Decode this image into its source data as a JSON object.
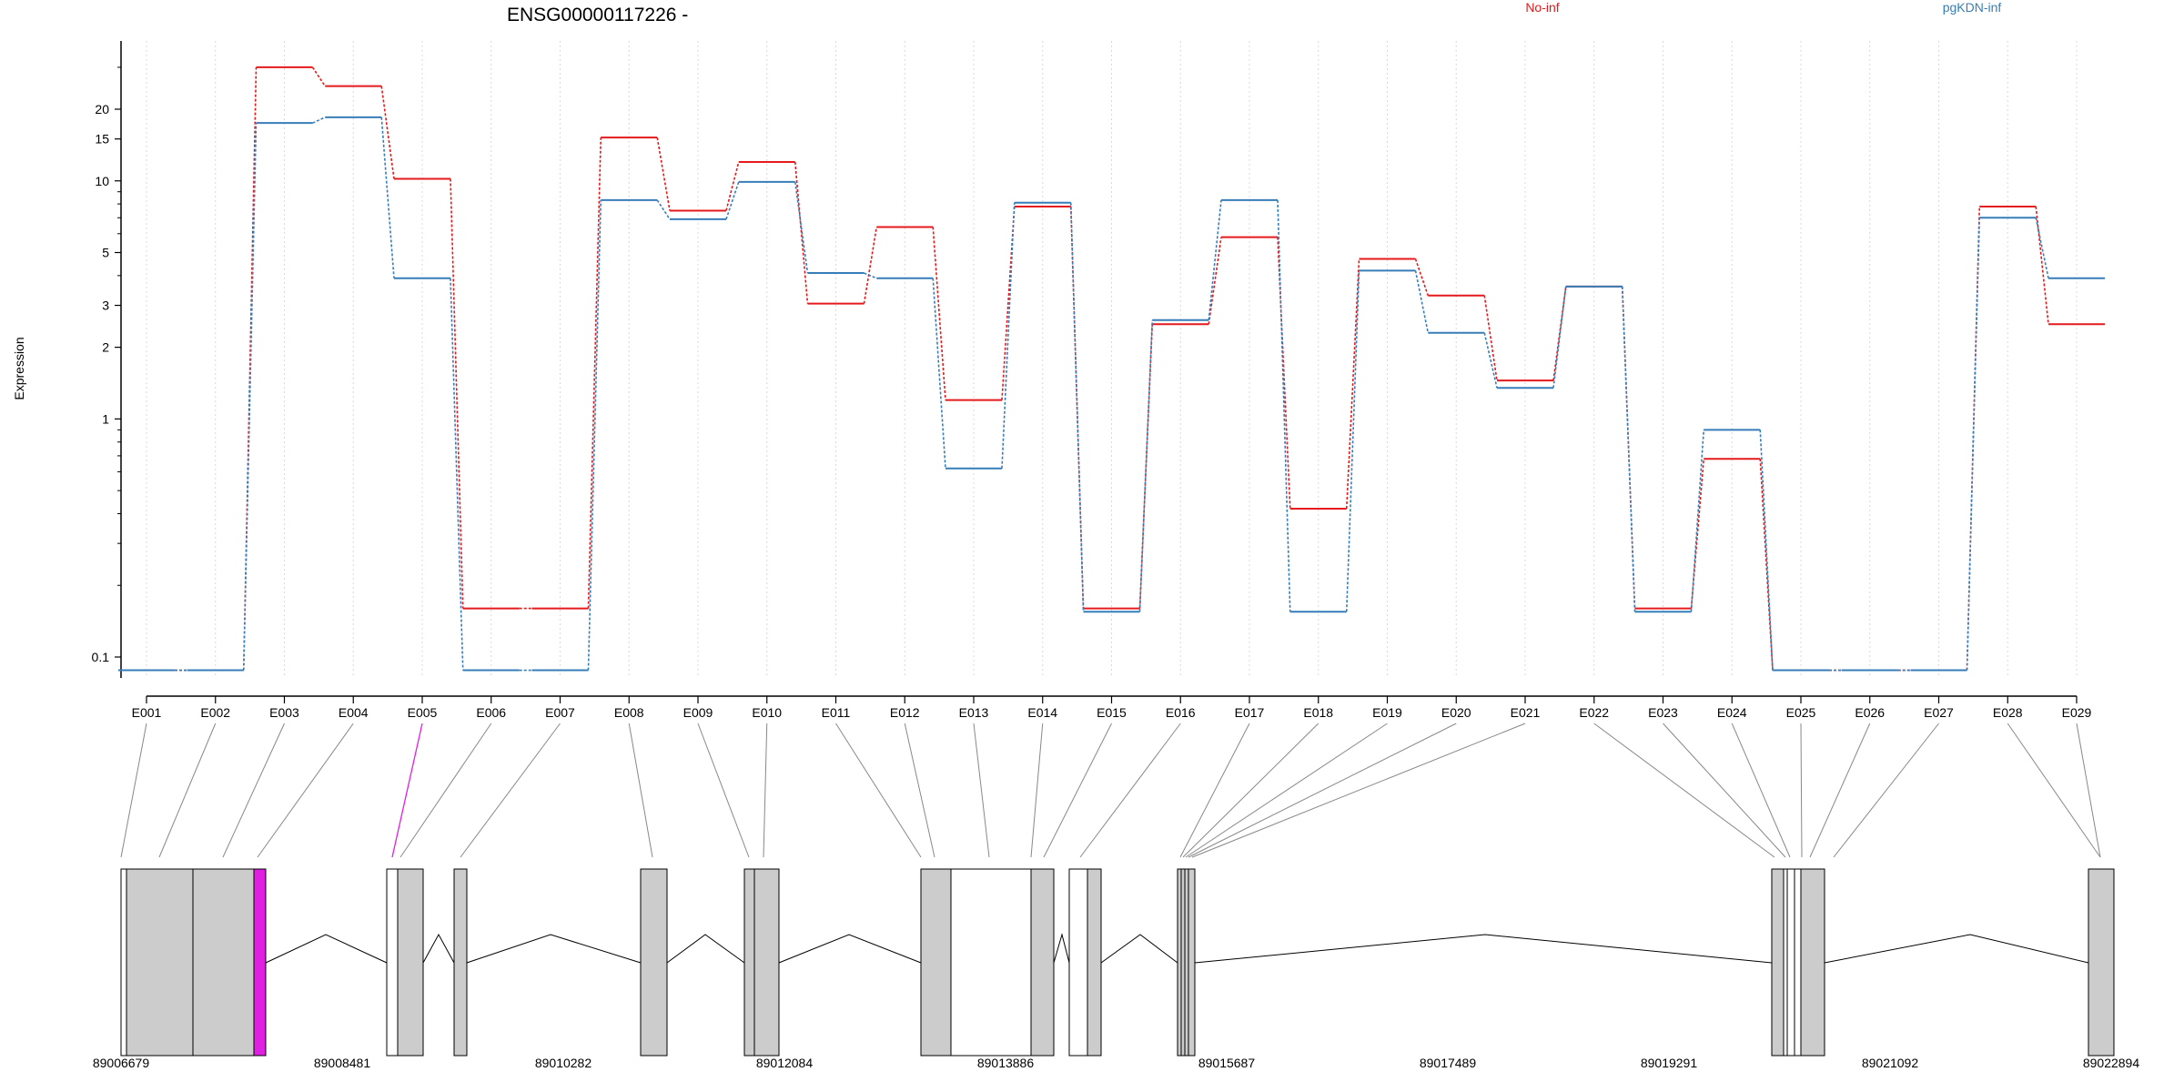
{
  "chart_data": {
    "type": "line",
    "title": "ENSG00000117226 -",
    "xlabel": "",
    "ylabel": "Expression",
    "y_scale": "log",
    "ylim": [
      0.07,
      40
    ],
    "y_ticks": [
      {
        "value": 0.1,
        "label": "0.1"
      },
      {
        "value": 1,
        "label": "1"
      },
      {
        "value": 2,
        "label": "2"
      },
      {
        "value": 3,
        "label": "3"
      },
      {
        "value": 5,
        "label": "5"
      },
      {
        "value": 10,
        "label": "10"
      },
      {
        "value": 15,
        "label": "15"
      },
      {
        "value": 20,
        "label": "20"
      }
    ],
    "categories": [
      "E001",
      "E002",
      "E003",
      "E004",
      "E005",
      "E006",
      "E007",
      "E008",
      "E009",
      "E010",
      "E011",
      "E012",
      "E013",
      "E014",
      "E015",
      "E016",
      "E017",
      "E018",
      "E019",
      "E020",
      "E021",
      "E022",
      "E023",
      "E024",
      "E025",
      "E026",
      "E027",
      "E028",
      "E029"
    ],
    "series": [
      {
        "name": "No-inf",
        "color": "#e41a1c",
        "values": [
          0.088,
          0.088,
          30,
          25,
          10.2,
          0.16,
          0.16,
          15.2,
          7.5,
          12,
          3.05,
          6.4,
          1.2,
          7.8,
          0.16,
          2.5,
          5.8,
          0.42,
          4.7,
          3.3,
          1.45,
          3.6,
          0.16,
          0.68,
          0.088,
          0.088,
          0.088,
          7.8,
          2.5
        ]
      },
      {
        "name": "pgKDN-inf",
        "color": "#377eb8",
        "values": [
          0.088,
          0.088,
          17.5,
          18.5,
          3.9,
          0.088,
          0.088,
          8.3,
          6.9,
          9.9,
          4.1,
          3.9,
          0.62,
          8.1,
          0.155,
          2.6,
          8.3,
          0.155,
          4.2,
          2.3,
          1.35,
          3.6,
          0.155,
          0.9,
          0.088,
          0.088,
          0.088,
          7.0,
          3.9
        ]
      }
    ],
    "legend_position": "top",
    "grid": "vertical-dotted",
    "gene_model": {
      "genomic_ticks": [
        "89006679",
        "89008481",
        "89010282",
        "89012084",
        "89013886",
        "89015687",
        "89017489",
        "89019291",
        "89021092",
        "89022894"
      ],
      "coord_range": [
        89006679,
        89022894
      ],
      "highlight_color": "#e020e0",
      "highlighted_exon": "E005",
      "exon_fill": "#cccccc"
    }
  }
}
